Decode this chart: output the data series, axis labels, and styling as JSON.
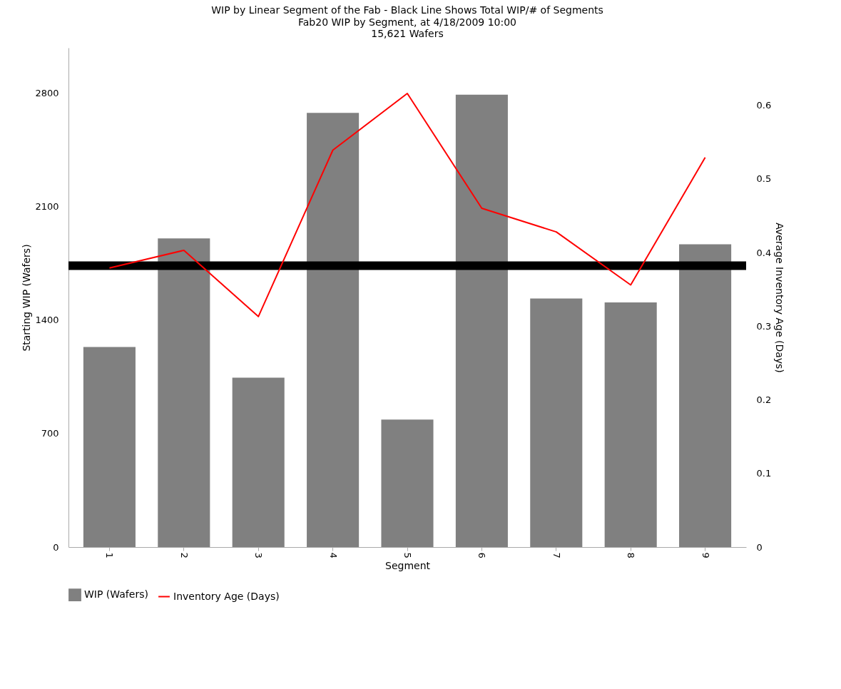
{
  "chart_data": {
    "type": "bar",
    "title": "WIP by Linear Segment of the Fab - Black Line Shows Total WIP/# of Segments",
    "subtitle": "Fab20 WIP by Segment, at 4/18/2009 10:00\n15,621 Wafers",
    "xlabel": "Segment",
    "ylabel": "Starting WIP (Wafers)",
    "y2label": "Average Inventory Age (Days)",
    "categories": [
      "1",
      "2",
      "3",
      "4",
      "5",
      "6",
      "7",
      "8",
      "9"
    ],
    "series": [
      {
        "name": "WIP (Wafers)",
        "type": "bar",
        "color": "#808080",
        "values": [
          1234,
          1904,
          1045,
          2678,
          787,
          2791,
          1533,
          1509,
          1868
        ]
      },
      {
        "name": "Inventory Age (Days)",
        "type": "line",
        "axis": "y2",
        "color": "#ff0000",
        "values": [
          0.379,
          0.403,
          0.313,
          0.539,
          0.616,
          0.46,
          0.428,
          0.356,
          0.529
        ]
      }
    ],
    "ylim": [
      0,
      3080
    ],
    "yticks": [
      0,
      700,
      1400,
      2100,
      2800
    ],
    "y2lim": [
      0,
      0.678
    ],
    "y2ticks": [
      0,
      0.1,
      0.2,
      0.3,
      0.4,
      0.5,
      0.6
    ],
    "ref_lines": [
      {
        "axis": "y",
        "value": 1736,
        "color": "#000000"
      }
    ],
    "grid": false,
    "legend": "bottom left"
  }
}
